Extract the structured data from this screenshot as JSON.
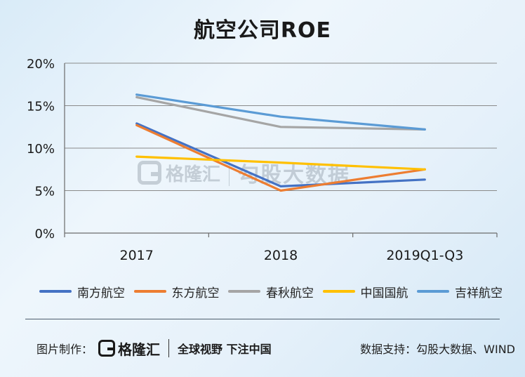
{
  "chart_data": {
    "type": "line",
    "title": "航空公司ROE",
    "categories": [
      "2017",
      "2018",
      "2019Q1-Q3"
    ],
    "y_ticks": [
      "0%",
      "5%",
      "10%",
      "15%",
      "20%"
    ],
    "ylim": [
      0,
      20
    ],
    "grid": true,
    "legend_position": "bottom",
    "series": [
      {
        "name": "南方航空",
        "color": "#4472c4",
        "values": [
          12.9,
          5.5,
          6.3
        ]
      },
      {
        "name": "东方航空",
        "color": "#ed7d31",
        "values": [
          12.7,
          5.0,
          7.5
        ]
      },
      {
        "name": "春秋航空",
        "color": "#a5a5a5",
        "values": [
          16.0,
          12.5,
          12.2
        ]
      },
      {
        "name": "中国国航",
        "color": "#ffc000",
        "values": [
          9.0,
          8.3,
          7.5
        ]
      },
      {
        "name": "吉祥航空",
        "color": "#5b9bd5",
        "values": [
          16.3,
          13.7,
          12.2
        ]
      }
    ]
  },
  "watermark": {
    "brand": "格隆汇",
    "text": "勾股大数据"
  },
  "footer": {
    "made_by_label": "图片制作：",
    "brand": "格隆汇",
    "slogan": "全球视野 下注中国",
    "source": "数据支持：勾股大数据、WIND"
  }
}
